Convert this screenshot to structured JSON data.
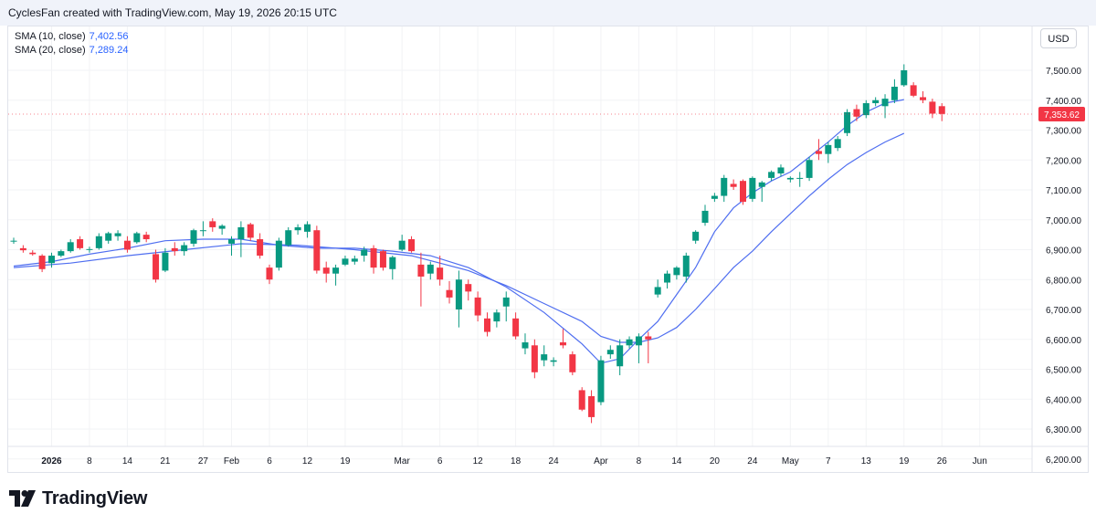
{
  "header": {
    "credit": "CyclesFan created with TradingView.com, May 19, 2026 20:15 UTC"
  },
  "legend": [
    {
      "name": "SMA (10, close)",
      "value": "7,402.56",
      "color": "#2962ff"
    },
    {
      "name": "SMA (20, close)",
      "value": "7,289.24",
      "color": "#2962ff"
    }
  ],
  "currency": "USD",
  "brand": "TradingView",
  "colors": {
    "up": "#089981",
    "down": "#f23645",
    "sma": "#4f6ef0",
    "grid": "#f2f3f5",
    "price_tag": "#f23645"
  },
  "chart_data": {
    "type": "candlestick",
    "title": "",
    "price_label": "7,353.62",
    "last_price": 7353.62,
    "y_range": [
      6200,
      7560
    ],
    "y_ticks": [
      {
        "v": 7500,
        "label": "7,500.00"
      },
      {
        "v": 7400,
        "label": "7,400.00"
      },
      {
        "v": 7300,
        "label": "7,300.00"
      },
      {
        "v": 7200,
        "label": "7,200.00"
      },
      {
        "v": 7100,
        "label": "7,100.00"
      },
      {
        "v": 7000,
        "label": "7,000.00"
      },
      {
        "v": 6900,
        "label": "6,900.00"
      },
      {
        "v": 6800,
        "label": "6,800.00"
      },
      {
        "v": 6700,
        "label": "6,700.00"
      },
      {
        "v": 6600,
        "label": "6,600.00"
      },
      {
        "v": 6500,
        "label": "6,500.00"
      },
      {
        "v": 6400,
        "label": "6,400.00"
      },
      {
        "v": 6300,
        "label": "6,300.00"
      },
      {
        "v": 6200,
        "label": "6,200.00"
      }
    ],
    "x_ticks": [
      {
        "i": 4,
        "label": "2026",
        "bold": true
      },
      {
        "i": 8,
        "label": "8"
      },
      {
        "i": 12,
        "label": "14"
      },
      {
        "i": 16,
        "label": "21"
      },
      {
        "i": 20,
        "label": "27"
      },
      {
        "i": 23,
        "label": "Feb"
      },
      {
        "i": 27,
        "label": "6"
      },
      {
        "i": 31,
        "label": "12"
      },
      {
        "i": 35,
        "label": "19"
      },
      {
        "i": 41,
        "label": "Mar"
      },
      {
        "i": 45,
        "label": "6"
      },
      {
        "i": 49,
        "label": "12"
      },
      {
        "i": 53,
        "label": "18"
      },
      {
        "i": 57,
        "label": "24"
      },
      {
        "i": 62,
        "label": "Apr"
      },
      {
        "i": 66,
        "label": "8"
      },
      {
        "i": 70,
        "label": "14"
      },
      {
        "i": 74,
        "label": "20"
      },
      {
        "i": 78,
        "label": "24"
      },
      {
        "i": 82,
        "label": "May"
      },
      {
        "i": 86,
        "label": "7"
      },
      {
        "i": 90,
        "label": "13"
      },
      {
        "i": 94,
        "label": "19"
      },
      {
        "i": 98,
        "label": "26"
      },
      {
        "i": 102,
        "label": "Jun"
      }
    ],
    "candles": [
      [
        6930,
        6940,
        6920,
        6930
      ],
      [
        6905,
        6915,
        6890,
        6898
      ],
      [
        6890,
        6898,
        6880,
        6885
      ],
      [
        6880,
        6885,
        6825,
        6835
      ],
      [
        6855,
        6890,
        6840,
        6880
      ],
      [
        6880,
        6900,
        6875,
        6895
      ],
      [
        6895,
        6935,
        6890,
        6925
      ],
      [
        6935,
        6945,
        6900,
        6905
      ],
      [
        6900,
        6910,
        6890,
        6902
      ],
      [
        6905,
        6955,
        6900,
        6945
      ],
      [
        6930,
        6960,
        6920,
        6955
      ],
      [
        6945,
        6965,
        6930,
        6955
      ],
      [
        6930,
        6945,
        6890,
        6900
      ],
      [
        6925,
        6960,
        6920,
        6955
      ],
      [
        6950,
        6960,
        6925,
        6935
      ],
      [
        6885,
        6900,
        6790,
        6800
      ],
      [
        6830,
        6905,
        6825,
        6890
      ],
      [
        6905,
        6925,
        6880,
        6895
      ],
      [
        6895,
        6925,
        6880,
        6915
      ],
      [
        6920,
        6970,
        6910,
        6965
      ],
      [
        6965,
        6995,
        6945,
        6965
      ],
      [
        6995,
        7005,
        6960,
        6975
      ],
      [
        6970,
        6985,
        6950,
        6980
      ],
      [
        6920,
        6945,
        6880,
        6935
      ],
      [
        6935,
        6995,
        6875,
        6975
      ],
      [
        6985,
        6990,
        6930,
        6940
      ],
      [
        6935,
        6955,
        6870,
        6880
      ],
      [
        6840,
        6850,
        6785,
        6800
      ],
      [
        6840,
        6940,
        6830,
        6930
      ],
      [
        6915,
        6975,
        6910,
        6965
      ],
      [
        6965,
        6985,
        6950,
        6975
      ],
      [
        6960,
        6995,
        6940,
        6985
      ],
      [
        6965,
        6980,
        6820,
        6830
      ],
      [
        6840,
        6860,
        6790,
        6820
      ],
      [
        6820,
        6850,
        6780,
        6840
      ],
      [
        6850,
        6880,
        6845,
        6870
      ],
      [
        6860,
        6880,
        6850,
        6870
      ],
      [
        6880,
        6910,
        6860,
        6900
      ],
      [
        6905,
        6915,
        6820,
        6840
      ],
      [
        6895,
        6900,
        6830,
        6840
      ],
      [
        6835,
        6880,
        6800,
        6875
      ],
      [
        6900,
        6950,
        6895,
        6930
      ],
      [
        6935,
        6945,
        6890,
        6895
      ],
      [
        6850,
        6890,
        6710,
        6810
      ],
      [
        6820,
        6860,
        6800,
        6850
      ],
      [
        6840,
        6880,
        6780,
        6800
      ],
      [
        6765,
        6795,
        6720,
        6740
      ],
      [
        6700,
        6830,
        6640,
        6800
      ],
      [
        6785,
        6800,
        6730,
        6760
      ],
      [
        6740,
        6760,
        6660,
        6680
      ],
      [
        6670,
        6690,
        6610,
        6625
      ],
      [
        6660,
        6700,
        6640,
        6690
      ],
      [
        6710,
        6760,
        6660,
        6740
      ],
      [
        6670,
        6690,
        6600,
        6610
      ],
      [
        6570,
        6620,
        6550,
        6590
      ],
      [
        6580,
        6600,
        6470,
        6490
      ],
      [
        6530,
        6580,
        6510,
        6550
      ],
      [
        6525,
        6540,
        6510,
        6530
      ],
      [
        6590,
        6635,
        6570,
        6580
      ],
      [
        6550,
        6560,
        6480,
        6490
      ],
      [
        6430,
        6440,
        6360,
        6365
      ],
      [
        6410,
        6430,
        6320,
        6340
      ],
      [
        6390,
        6545,
        6380,
        6530
      ],
      [
        6550,
        6580,
        6535,
        6565
      ],
      [
        6510,
        6600,
        6480,
        6580
      ],
      [
        6580,
        6610,
        6570,
        6600
      ],
      [
        6580,
        6620,
        6520,
        6610
      ],
      [
        6610,
        6625,
        6520,
        6600
      ],
      [
        6750,
        6800,
        6740,
        6775
      ],
      [
        6790,
        6830,
        6770,
        6820
      ],
      [
        6815,
        6845,
        6800,
        6840
      ],
      [
        6810,
        6890,
        6790,
        6880
      ],
      [
        6930,
        6965,
        6920,
        6960
      ],
      [
        6990,
        7050,
        6980,
        7030
      ],
      [
        7070,
        7090,
        7060,
        7080
      ],
      [
        7080,
        7150,
        7060,
        7140
      ],
      [
        7120,
        7135,
        7100,
        7110
      ],
      [
        7130,
        7135,
        7050,
        7060
      ],
      [
        7070,
        7145,
        7060,
        7140
      ],
      [
        7110,
        7130,
        7060,
        7125
      ],
      [
        7140,
        7165,
        7130,
        7160
      ],
      [
        7155,
        7185,
        7145,
        7175
      ],
      [
        7135,
        7145,
        7125,
        7140
      ],
      [
        7140,
        7160,
        7110,
        7140
      ],
      [
        7140,
        7210,
        7130,
        7200
      ],
      [
        7230,
        7270,
        7200,
        7220
      ],
      [
        7220,
        7260,
        7190,
        7250
      ],
      [
        7240,
        7280,
        7230,
        7270
      ],
      [
        7290,
        7370,
        7280,
        7360
      ],
      [
        7370,
        7385,
        7330,
        7345
      ],
      [
        7350,
        7400,
        7340,
        7390
      ],
      [
        7390,
        7410,
        7380,
        7400
      ],
      [
        7380,
        7420,
        7340,
        7405
      ],
      [
        7400,
        7470,
        7390,
        7445
      ],
      [
        7450,
        7520,
        7445,
        7500
      ],
      [
        7450,
        7460,
        7410,
        7415
      ],
      [
        7410,
        7430,
        7390,
        7400
      ],
      [
        7395,
        7405,
        7340,
        7355
      ],
      [
        7380,
        7390,
        7330,
        7354
      ]
    ],
    "series": [
      {
        "name": "SMA (10, close)",
        "values": [
          [
            0,
            6845
          ],
          [
            4,
            6860
          ],
          [
            8,
            6885
          ],
          [
            12,
            6905
          ],
          [
            16,
            6930
          ],
          [
            20,
            6935
          ],
          [
            24,
            6935
          ],
          [
            28,
            6915
          ],
          [
            32,
            6905
          ],
          [
            36,
            6905
          ],
          [
            40,
            6895
          ],
          [
            44,
            6880
          ],
          [
            48,
            6840
          ],
          [
            52,
            6775
          ],
          [
            56,
            6690
          ],
          [
            60,
            6585
          ],
          [
            62,
            6520
          ],
          [
            64,
            6535
          ],
          [
            66,
            6600
          ],
          [
            68,
            6660
          ],
          [
            70,
            6750
          ],
          [
            72,
            6840
          ],
          [
            74,
            6960
          ],
          [
            76,
            7040
          ],
          [
            78,
            7090
          ],
          [
            80,
            7130
          ],
          [
            82,
            7160
          ],
          [
            84,
            7210
          ],
          [
            86,
            7260
          ],
          [
            88,
            7315
          ],
          [
            90,
            7360
          ],
          [
            92,
            7390
          ],
          [
            94,
            7402
          ]
        ]
      },
      {
        "name": "SMA (20, close)",
        "values": [
          [
            0,
            6840
          ],
          [
            6,
            6855
          ],
          [
            12,
            6880
          ],
          [
            18,
            6900
          ],
          [
            24,
            6920
          ],
          [
            30,
            6915
          ],
          [
            36,
            6900
          ],
          [
            42,
            6880
          ],
          [
            48,
            6830
          ],
          [
            52,
            6780
          ],
          [
            56,
            6720
          ],
          [
            60,
            6660
          ],
          [
            62,
            6610
          ],
          [
            64,
            6590
          ],
          [
            66,
            6590
          ],
          [
            68,
            6605
          ],
          [
            70,
            6640
          ],
          [
            72,
            6700
          ],
          [
            74,
            6770
          ],
          [
            76,
            6840
          ],
          [
            78,
            6895
          ],
          [
            80,
            6960
          ],
          [
            82,
            7020
          ],
          [
            84,
            7080
          ],
          [
            86,
            7135
          ],
          [
            88,
            7185
          ],
          [
            90,
            7225
          ],
          [
            92,
            7260
          ],
          [
            94,
            7289
          ]
        ]
      }
    ]
  }
}
